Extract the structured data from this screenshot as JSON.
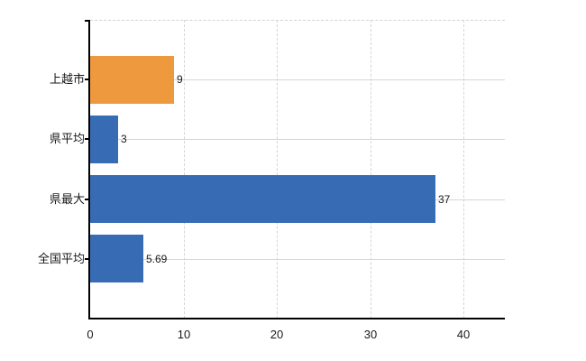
{
  "chart_data": {
    "type": "bar",
    "orientation": "horizontal",
    "title": "",
    "xlabel": "",
    "ylabel": "",
    "categories": [
      "上越市",
      "県平均",
      "県最大",
      "全国平均"
    ],
    "values": [
      9,
      3,
      37,
      5.69
    ],
    "value_labels": [
      "9",
      "3",
      "37",
      "5.69"
    ],
    "bar_colors": [
      "#EE993E",
      "#376CB4",
      "#376CB4",
      "#376CB4"
    ],
    "x_tick_labels": [
      "0",
      "10",
      "20",
      "30",
      "40"
    ],
    "x_tick_values": [
      0,
      10,
      20,
      30,
      40
    ],
    "xlim": [
      0,
      44.4
    ],
    "grid": true,
    "legend": false
  },
  "colors": {
    "bar_orange": "#EE993E",
    "bar_blue": "#376CB4",
    "grid_solid": "#d6d6d6",
    "grid_dashed": "#d9d3d3",
    "axis": "#000000",
    "text": "#1a1a1a",
    "background": "#ffffff"
  }
}
